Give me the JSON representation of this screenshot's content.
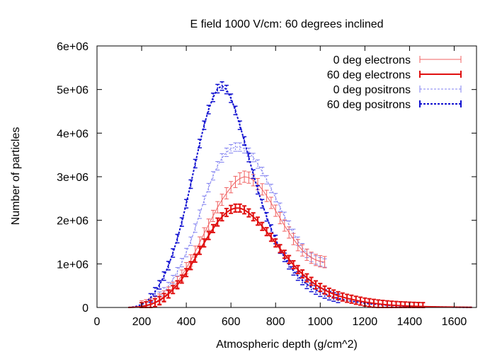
{
  "chart_data": {
    "type": "line",
    "title": "E field 1000 V/cm: 60 degrees inclined",
    "xlabel": "Atmospheric depth (g/cm^2)",
    "ylabel": "Number of particles",
    "xlim": [
      0,
      1700
    ],
    "ylim": [
      0,
      6000000
    ],
    "x_ticks": [
      0,
      200,
      400,
      600,
      800,
      1000,
      1200,
      1400,
      1600
    ],
    "x_tick_labels": [
      "0",
      "200",
      "400",
      "600",
      "800",
      "1000",
      "1200",
      "1400",
      "1600"
    ],
    "y_ticks": [
      0,
      1000000,
      2000000,
      3000000,
      4000000,
      5000000,
      6000000
    ],
    "y_tick_labels": [
      "0",
      "1e+06",
      "2e+06",
      "3e+06",
      "4e+06",
      "5e+06",
      "6e+06"
    ],
    "grid": false,
    "legend_position": "top-right",
    "series": [
      {
        "name": "0 deg electrons",
        "color": "#f06060",
        "style": "solid-thin-errorbars",
        "x": [
          140,
          160,
          180,
          200,
          220,
          240,
          260,
          280,
          300,
          320,
          340,
          360,
          380,
          400,
          420,
          440,
          460,
          480,
          500,
          520,
          540,
          560,
          580,
          600,
          620,
          640,
          660,
          680,
          700,
          720,
          740,
          760,
          780,
          800,
          820,
          840,
          860,
          880,
          900,
          920,
          940,
          960,
          980,
          1000,
          1020
        ],
        "y": [
          0,
          5000,
          10000,
          25000,
          50000,
          80000,
          120000,
          180000,
          250000,
          340000,
          450000,
          580000,
          730000,
          900000,
          1080000,
          1280000,
          1490000,
          1700000,
          1900000,
          2100000,
          2300000,
          2470000,
          2620000,
          2760000,
          2880000,
          2960000,
          3000000,
          2980000,
          2920000,
          2830000,
          2710000,
          2560000,
          2400000,
          2220000,
          2050000,
          1880000,
          1720000,
          1570000,
          1430000,
          1310000,
          1210000,
          1140000,
          1090000,
          1060000,
          1040000
        ],
        "error": 130000
      },
      {
        "name": "60 deg electrons",
        "color": "#e01010",
        "style": "solid-thick-errorbars",
        "x": [
          140,
          160,
          180,
          200,
          220,
          240,
          260,
          280,
          300,
          320,
          340,
          360,
          380,
          400,
          420,
          440,
          460,
          480,
          500,
          520,
          540,
          560,
          580,
          600,
          620,
          640,
          660,
          680,
          700,
          720,
          740,
          760,
          780,
          800,
          820,
          840,
          860,
          880,
          900,
          920,
          940,
          960,
          980,
          1000,
          1020,
          1040,
          1060,
          1080,
          1100,
          1120,
          1140,
          1160,
          1180,
          1200,
          1220,
          1240,
          1260,
          1280,
          1300,
          1320,
          1340,
          1360,
          1380,
          1400,
          1420,
          1440,
          1460,
          1480,
          1500,
          1520,
          1540,
          1560,
          1580,
          1600,
          1620,
          1640,
          1660,
          1680
        ],
        "y": [
          0,
          5000,
          10000,
          20000,
          40000,
          70000,
          110000,
          160000,
          230000,
          310000,
          410000,
          520000,
          650000,
          800000,
          960000,
          1130000,
          1310000,
          1480000,
          1650000,
          1810000,
          1960000,
          2080000,
          2180000,
          2250000,
          2280000,
          2280000,
          2240000,
          2170000,
          2080000,
          1980000,
          1860000,
          1740000,
          1610000,
          1480000,
          1350000,
          1220000,
          1100000,
          980000,
          870000,
          770000,
          680000,
          600000,
          520000,
          460000,
          400000,
          350000,
          310000,
          270000,
          240000,
          210000,
          190000,
          165000,
          145000,
          125000,
          110000,
          95000,
          82000,
          72000,
          62000,
          54000,
          47000,
          41000,
          36000,
          31000,
          27000,
          24000,
          21000,
          18000,
          16000,
          14000,
          12000,
          10000,
          9000,
          8000,
          7000,
          6000,
          5000,
          4000
        ],
        "error": 90000
      },
      {
        "name": "0 deg positrons",
        "color": "#8080f0",
        "style": "dashed-thin",
        "x": [
          140,
          160,
          180,
          200,
          220,
          240,
          260,
          280,
          300,
          320,
          340,
          360,
          380,
          400,
          420,
          440,
          460,
          480,
          500,
          520,
          540,
          560,
          580,
          600,
          620,
          640,
          660,
          680,
          700,
          720,
          740,
          760,
          780,
          800,
          820,
          840,
          860,
          880,
          900,
          920,
          940,
          960,
          980,
          1000,
          1020
        ],
        "y": [
          0,
          5000,
          15000,
          35000,
          70000,
          120000,
          180000,
          260000,
          360000,
          480000,
          640000,
          820000,
          1030000,
          1260000,
          1520000,
          1820000,
          2140000,
          2460000,
          2750000,
          3020000,
          3250000,
          3430000,
          3560000,
          3640000,
          3680000,
          3680000,
          3640000,
          3560000,
          3440000,
          3290000,
          3120000,
          2930000,
          2730000,
          2520000,
          2300000,
          2090000,
          1890000,
          1700000,
          1520000,
          1370000,
          1240000,
          1150000,
          1090000,
          1050000,
          1020000
        ]
      },
      {
        "name": "60 deg positrons",
        "color": "#1010d0",
        "style": "dashed-thick",
        "x": [
          140,
          160,
          180,
          200,
          220,
          240,
          260,
          280,
          300,
          320,
          340,
          360,
          380,
          400,
          420,
          440,
          460,
          480,
          500,
          520,
          540,
          560,
          580,
          600,
          620,
          640,
          660,
          680,
          700,
          720,
          740,
          760,
          780,
          800,
          820,
          840,
          860,
          880,
          900,
          920,
          940,
          960,
          980,
          1000,
          1020,
          1040,
          1060,
          1080,
          1100,
          1120,
          1140,
          1160,
          1180,
          1200,
          1220,
          1240,
          1260,
          1280,
          1300,
          1320,
          1340,
          1360,
          1380,
          1400,
          1420,
          1440,
          1460,
          1480,
          1500,
          1520,
          1540,
          1560,
          1580,
          1600,
          1620,
          1640,
          1660,
          1680
        ],
        "y": [
          0,
          10000,
          30000,
          70000,
          130000,
          220000,
          360000,
          520000,
          720000,
          960000,
          1250000,
          1580000,
          1960000,
          2380000,
          2830000,
          3300000,
          3760000,
          4180000,
          4540000,
          4820000,
          5020000,
          5080000,
          5000000,
          4800000,
          4520000,
          4180000,
          3820000,
          3440000,
          3060000,
          2700000,
          2380000,
          2080000,
          1800000,
          1560000,
          1340000,
          1150000,
          980000,
          840000,
          720000,
          620000,
          530000,
          460000,
          400000,
          350000,
          310000,
          270000,
          240000,
          210000,
          185000,
          165000,
          145000,
          128000,
          112000,
          98000,
          86000,
          76000,
          67000,
          59000,
          52000,
          46000,
          40000,
          35000,
          31000,
          27000,
          24000,
          21000,
          18000,
          16000,
          14000,
          12000,
          10000,
          9000,
          8000,
          7000,
          6000,
          5000,
          4000,
          3000
        ]
      }
    ]
  }
}
